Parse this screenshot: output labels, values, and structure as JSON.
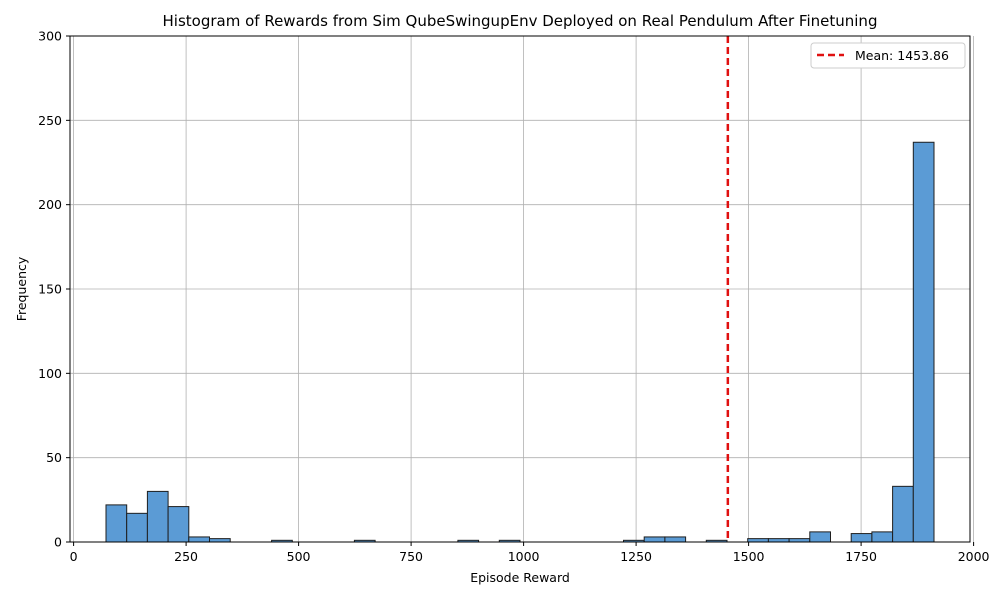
{
  "chart_data": {
    "type": "bar",
    "title": "Histogram of Rewards from Sim QubeSwingupEnv Deployed on Real Pendulum After Finetuning",
    "xlabel": "Episode Reward",
    "ylabel": "Frequency",
    "xlim": [
      -8,
      1992
    ],
    "ylim": [
      0,
      300
    ],
    "xticks": [
      0,
      250,
      500,
      750,
      1000,
      1250,
      1500,
      1750,
      2000
    ],
    "xtick_labels": [
      "0",
      "250",
      "500",
      "750",
      "1000",
      "1250",
      "1500",
      "1750",
      "2000"
    ],
    "yticks": [
      0,
      50,
      100,
      150,
      200,
      250,
      300
    ],
    "ytick_labels": [
      "0",
      "50",
      "100",
      "150",
      "200",
      "250",
      "300"
    ],
    "grid": true,
    "bar_color": "#5b9bd5",
    "bar_edge_color": "#1f1f1f",
    "bins": [
      {
        "start": 72,
        "end": 118,
        "count": 22
      },
      {
        "start": 118,
        "end": 164,
        "count": 17
      },
      {
        "start": 164,
        "end": 210,
        "count": 30
      },
      {
        "start": 210,
        "end": 256,
        "count": 21
      },
      {
        "start": 256,
        "end": 302,
        "count": 3
      },
      {
        "start": 302,
        "end": 348,
        "count": 2
      },
      {
        "start": 440,
        "end": 486,
        "count": 1
      },
      {
        "start": 624,
        "end": 670,
        "count": 1
      },
      {
        "start": 854,
        "end": 900,
        "count": 1
      },
      {
        "start": 946,
        "end": 992,
        "count": 1
      },
      {
        "start": 1222,
        "end": 1268,
        "count": 1
      },
      {
        "start": 1268,
        "end": 1314,
        "count": 3
      },
      {
        "start": 1314,
        "end": 1360,
        "count": 3
      },
      {
        "start": 1406,
        "end": 1452,
        "count": 1
      },
      {
        "start": 1498,
        "end": 1544,
        "count": 2
      },
      {
        "start": 1544,
        "end": 1590,
        "count": 2
      },
      {
        "start": 1590,
        "end": 1636,
        "count": 2
      },
      {
        "start": 1636,
        "end": 1682,
        "count": 6
      },
      {
        "start": 1728,
        "end": 1774,
        "count": 5
      },
      {
        "start": 1774,
        "end": 1820,
        "count": 6
      },
      {
        "start": 1820,
        "end": 1866,
        "count": 33
      },
      {
        "start": 1866,
        "end": 1912,
        "count": 237
      }
    ],
    "mean_line": {
      "value": 1453.86,
      "label": "Mean: 1453.86",
      "color": "#e01010",
      "style": "dashed"
    },
    "legend_position": "top-right"
  }
}
